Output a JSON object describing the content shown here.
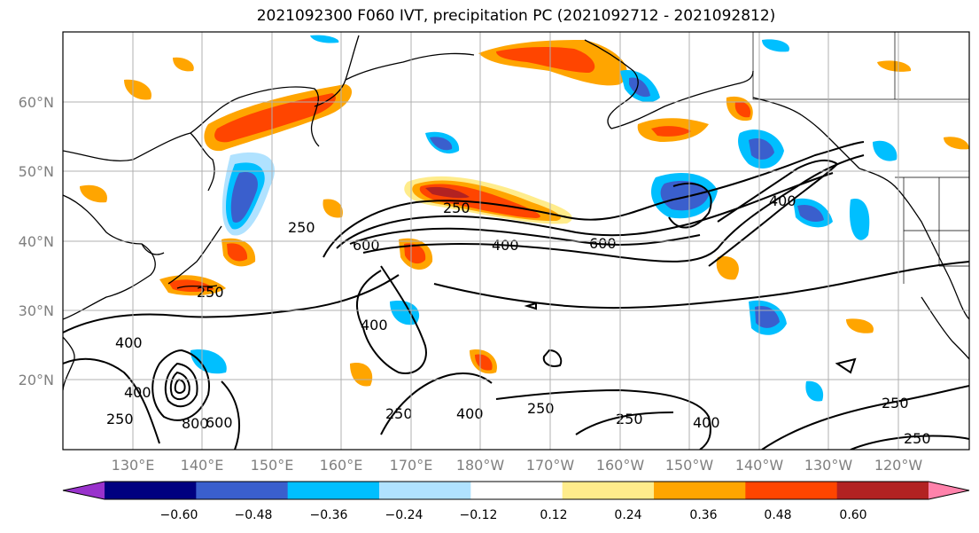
{
  "title": "2021092300 F060 IVT, precipitation PC (2021092712 - 2021092812)",
  "lat_ticks": [
    "60°N",
    "50°N",
    "40°N",
    "30°N",
    "20°N"
  ],
  "lon_ticks": [
    "130°E",
    "140°E",
    "150°E",
    "160°E",
    "170°E",
    "180°W",
    "170°W",
    "160°W",
    "150°W",
    "140°W",
    "130°W",
    "120°W"
  ],
  "colorbar": {
    "colors": [
      "#9932cc",
      "#000080",
      "#3a5fcd",
      "#00bfff",
      "#b0e2ff",
      "#ffffff",
      "#ffec8b",
      "#ffa500",
      "#ff4500",
      "#b22222",
      "#ff82ab"
    ],
    "labels": [
      "−0.60",
      "−0.48",
      "−0.36",
      "−0.24",
      "−0.12",
      "0.12",
      "0.24",
      "0.36",
      "0.48",
      "0.60"
    ]
  },
  "contour_labels": [
    "250",
    "250",
    "250",
    "250",
    "250",
    "250",
    "250",
    "250",
    "250",
    "400",
    "400",
    "400",
    "400",
    "400",
    "400",
    "400",
    "600",
    "600",
    "600",
    "800"
  ]
}
